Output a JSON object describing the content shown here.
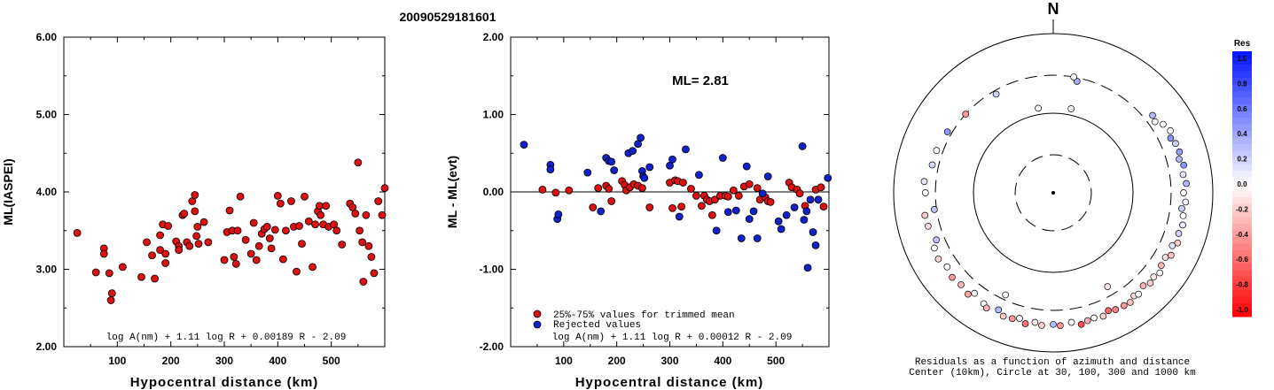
{
  "title": "20090529181601",
  "colors": {
    "red": "#dd1111",
    "blue": "#1122cc",
    "black": "#000000"
  },
  "chart_data": [
    {
      "type": "scatter",
      "xlabel": "Hypocentral distance (km)",
      "ylabel": "ML(IASPEI)",
      "xlim": [
        0,
        600
      ],
      "ylim": [
        2.0,
        6.0
      ],
      "xticks": [
        "100",
        "200",
        "300",
        "400",
        "500"
      ],
      "yticks": [
        "2.00",
        "3.00",
        "4.00",
        "5.00",
        "6.00"
      ],
      "formula": "log A(nm) + 1.11 log R + 0.00189 R - 2.09",
      "series": [
        {
          "color": "red",
          "points": [
            [
              25,
              3.47
            ],
            [
              60,
              2.96
            ],
            [
              75,
              3.27
            ],
            [
              75,
              3.2
            ],
            [
              85,
              2.95
            ],
            [
              88,
              2.6
            ],
            [
              90,
              2.69
            ],
            [
              110,
              3.03
            ],
            [
              145,
              2.9
            ],
            [
              155,
              3.35
            ],
            [
              165,
              3.18
            ],
            [
              170,
              2.88
            ],
            [
              180,
              3.44
            ],
            [
              180,
              3.25
            ],
            [
              185,
              3.58
            ],
            [
              190,
              3.2
            ],
            [
              190,
              3.08
            ],
            [
              195,
              3.56
            ],
            [
              210,
              3.36
            ],
            [
              215,
              3.3
            ],
            [
              215,
              3.25
            ],
            [
              222,
              3.7
            ],
            [
              225,
              3.72
            ],
            [
              230,
              3.35
            ],
            [
              235,
              3.3
            ],
            [
              240,
              3.88
            ],
            [
              245,
              3.96
            ],
            [
              245,
              3.75
            ],
            [
              248,
              3.43
            ],
            [
              250,
              3.55
            ],
            [
              252,
              3.33
            ],
            [
              262,
              3.61
            ],
            [
              270,
              3.35
            ],
            [
              300,
              3.12
            ],
            [
              305,
              3.48
            ],
            [
              310,
              3.76
            ],
            [
              315,
              3.5
            ],
            [
              318,
              3.16
            ],
            [
              322,
              3.07
            ],
            [
              325,
              3.5
            ],
            [
              330,
              3.94
            ],
            [
              340,
              3.38
            ],
            [
              350,
              3.2
            ],
            [
              355,
              3.6
            ],
            [
              360,
              3.12
            ],
            [
              365,
              3.3
            ],
            [
              370,
              3.46
            ],
            [
              375,
              3.52
            ],
            [
              380,
              3.55
            ],
            [
              385,
              3.4
            ],
            [
              388,
              3.27
            ],
            [
              395,
              3.51
            ],
            [
              400,
              3.95
            ],
            [
              405,
              3.85
            ],
            [
              410,
              3.13
            ],
            [
              415,
              3.5
            ],
            [
              425,
              3.88
            ],
            [
              430,
              3.55
            ],
            [
              435,
              2.97
            ],
            [
              440,
              3.56
            ],
            [
              445,
              3.33
            ],
            [
              450,
              3.94
            ],
            [
              458,
              3.62
            ],
            [
              465,
              3.03
            ],
            [
              470,
              3.58
            ],
            [
              475,
              3.75
            ],
            [
              478,
              3.82
            ],
            [
              480,
              3.7
            ],
            [
              485,
              3.58
            ],
            [
              490,
              3.82
            ],
            [
              495,
              3.55
            ],
            [
              505,
              3.58
            ],
            [
              510,
              3.5
            ],
            [
              520,
              3.32
            ],
            [
              535,
              3.85
            ],
            [
              540,
              3.8
            ],
            [
              545,
              3.72
            ],
            [
              550,
              4.38
            ],
            [
              553,
              3.5
            ],
            [
              558,
              3.35
            ],
            [
              560,
              2.84
            ],
            [
              565,
              3.7
            ],
            [
              570,
              3.3
            ],
            [
              575,
              3.16
            ],
            [
              580,
              2.95
            ],
            [
              588,
              3.88
            ],
            [
              595,
              3.7
            ],
            [
              600,
              4.05
            ]
          ]
        }
      ]
    },
    {
      "type": "scatter",
      "xlabel": "Hypocentral distance (km)",
      "ylabel": "ML - ML(evt)",
      "xlim": [
        0,
        600
      ],
      "ylim": [
        -2.0,
        2.0
      ],
      "xticks": [
        "100",
        "200",
        "300",
        "400",
        "500"
      ],
      "yticks": [
        "-2.00",
        "-1.00",
        "0.00",
        "1.00",
        "2.00"
      ],
      "ml_text": "ML= 2.81",
      "legend": [
        "25%-75% values for trimmed mean",
        "Rejected values"
      ],
      "formula": "log A(nm) + 1.11 log R + 0.00012 R - 2.09",
      "series": [
        {
          "name": "25%-75% values for trimmed mean",
          "color": "red",
          "points": [
            [
              60,
              0.03
            ],
            [
              85,
              -0.01
            ],
            [
              110,
              0.02
            ],
            [
              155,
              -0.2
            ],
            [
              165,
              0.05
            ],
            [
              180,
              0.08
            ],
            [
              185,
              0.04
            ],
            [
              190,
              -0.12
            ],
            [
              210,
              0.14
            ],
            [
              215,
              0.09
            ],
            [
              218,
              0.02
            ],
            [
              225,
              0.06
            ],
            [
              232,
              0.1
            ],
            [
              240,
              0.08
            ],
            [
              248,
              0.05
            ],
            [
              262,
              -0.2
            ],
            [
              300,
              0.12
            ],
            [
              305,
              -0.21
            ],
            [
              310,
              0.15
            ],
            [
              315,
              0.14
            ],
            [
              322,
              -0.19
            ],
            [
              325,
              0.12
            ],
            [
              340,
              0.04
            ],
            [
              350,
              -0.05
            ],
            [
              360,
              -0.18
            ],
            [
              365,
              -0.05
            ],
            [
              370,
              -0.1
            ],
            [
              375,
              -0.12
            ],
            [
              380,
              -0.3
            ],
            [
              385,
              -0.1
            ],
            [
              395,
              -0.05
            ],
            [
              405,
              -0.05
            ],
            [
              410,
              -0.06
            ],
            [
              420,
              0.02
            ],
            [
              430,
              -0.05
            ],
            [
              440,
              0.07
            ],
            [
              450,
              0.1
            ],
            [
              465,
              0.05
            ],
            [
              470,
              -0.1
            ],
            [
              480,
              -0.07
            ],
            [
              485,
              -0.12
            ],
            [
              490,
              -0.13
            ],
            [
              525,
              0.12
            ],
            [
              530,
              0.06
            ],
            [
              540,
              0.03
            ],
            [
              545,
              -0.02
            ],
            [
              555,
              -0.18
            ],
            [
              575,
              0.03
            ],
            [
              585,
              0.06
            ],
            [
              590,
              -0.19
            ]
          ]
        },
        {
          "name": "Rejected values",
          "color": "blue",
          "points": [
            [
              25,
              0.61
            ],
            [
              75,
              0.35
            ],
            [
              75,
              0.29
            ],
            [
              88,
              -0.35
            ],
            [
              90,
              -0.29
            ],
            [
              145,
              0.25
            ],
            [
              170,
              -0.25
            ],
            [
              180,
              0.44
            ],
            [
              185,
              0.4
            ],
            [
              190,
              0.39
            ],
            [
              195,
              0.28
            ],
            [
              222,
              0.5
            ],
            [
              230,
              0.53
            ],
            [
              240,
              0.62
            ],
            [
              245,
              0.7
            ],
            [
              248,
              0.27
            ],
            [
              250,
              0.2
            ],
            [
              252,
              0.18
            ],
            [
              262,
              0.32
            ],
            [
              300,
              0.34
            ],
            [
              305,
              0.42
            ],
            [
              318,
              -0.32
            ],
            [
              330,
              0.55
            ],
            [
              355,
              0.22
            ],
            [
              388,
              -0.5
            ],
            [
              400,
              0.44
            ],
            [
              410,
              -0.26
            ],
            [
              425,
              -0.24
            ],
            [
              435,
              -0.6
            ],
            [
              445,
              0.33
            ],
            [
              450,
              -0.35
            ],
            [
              458,
              -0.25
            ],
            [
              465,
              -0.6
            ],
            [
              475,
              -0.02
            ],
            [
              485,
              0.2
            ],
            [
              505,
              -0.38
            ],
            [
              510,
              -0.48
            ],
            [
              520,
              -0.3
            ],
            [
              535,
              -0.2
            ],
            [
              550,
              0.59
            ],
            [
              553,
              -0.36
            ],
            [
              558,
              -0.25
            ],
            [
              560,
              -0.98
            ],
            [
              565,
              -0.1
            ],
            [
              570,
              -0.52
            ],
            [
              575,
              -0.69
            ],
            [
              580,
              -0.1
            ],
            [
              598,
              0.18
            ]
          ]
        }
      ]
    },
    {
      "type": "scatter",
      "title": "N",
      "caption": [
        "Residuals as a function of azimuth and distance",
        "Center (10km), Circle at 30, 100, 300 and 1000 km"
      ],
      "colorbar_title": "Res",
      "colorbar_ticks": [
        "1.0",
        "0.8",
        "0.6",
        "0.4",
        "0.2",
        "0.0",
        "-0.2",
        "-0.4",
        "-0.6",
        "-0.8",
        "-1.0"
      ],
      "rings_km": [
        10,
        30,
        100,
        300,
        1000
      ],
      "points_az_dist_res": [
        [
          12,
          270,
          0.35
        ],
        [
          10,
          300,
          0.0
        ],
        [
          350,
          120,
          0.0
        ],
        [
          12,
          120,
          0.0
        ],
        [
          330,
          270,
          0.2
        ],
        [
          150,
          230,
          -0.1
        ],
        [
          205,
          260,
          0.0
        ],
        [
          312,
          300,
          -0.4
        ],
        [
          300,
          340,
          0.42
        ],
        [
          290,
          360,
          0.0
        ],
        [
          283,
          360,
          0.15
        ],
        [
          275,
          420,
          0.1
        ],
        [
          270,
          400,
          0.0
        ],
        [
          260,
          430,
          -0.2
        ],
        [
          262,
          320,
          0.25
        ],
        [
          255,
          420,
          -0.15
        ],
        [
          248,
          380,
          0.25
        ],
        [
          245,
          440,
          0.0
        ],
        [
          240,
          460,
          -0.15
        ],
        [
          235,
          420,
          0.0
        ],
        [
          230,
          450,
          -0.4
        ],
        [
          225,
          430,
          -0.3
        ],
        [
          220,
          460,
          -0.35
        ],
        [
          218,
          400,
          0.0
        ],
        [
          212,
          440,
          0.05
        ],
        [
          210,
          470,
          -0.3
        ],
        [
          205,
          420,
          0.3
        ],
        [
          202,
          470,
          -0.2
        ],
        [
          198,
          460,
          -0.4
        ],
        [
          195,
          430,
          0.05
        ],
        [
          192,
          480,
          -0.55
        ],
        [
          188,
          440,
          -0.1
        ],
        [
          185,
          470,
          -0.2
        ],
        [
          180,
          450,
          0.3
        ],
        [
          177,
          470,
          -0.4
        ],
        [
          172,
          440,
          0.0
        ],
        [
          168,
          490,
          -0.7
        ],
        [
          165,
          460,
          -0.3
        ],
        [
          162,
          450,
          0.0
        ],
        [
          158,
          470,
          -0.2
        ],
        [
          155,
          430,
          -0.6
        ],
        [
          152,
          460,
          -0.5
        ],
        [
          148,
          470,
          -0.4
        ],
        [
          145,
          480,
          -0.25
        ],
        [
          142,
          440,
          -0.15
        ],
        [
          140,
          460,
          0.0
        ],
        [
          136,
          420,
          -0.3
        ],
        [
          133,
          460,
          -0.2
        ],
        [
          130,
          440,
          -0.1
        ],
        [
          127,
          470,
          0.0
        ],
        [
          124,
          430,
          -0.3
        ],
        [
          120,
          420,
          -0.1
        ],
        [
          118,
          470,
          -0.25
        ],
        [
          114,
          430,
          0.1
        ],
        [
          112,
          480,
          -0.2
        ],
        [
          108,
          450,
          0.2
        ],
        [
          104,
          470,
          0.1
        ],
        [
          100,
          450,
          0.0
        ],
        [
          97,
          420,
          0.2
        ],
        [
          94,
          460,
          0.05
        ],
        [
          90,
          430,
          0.0
        ],
        [
          86,
          470,
          0.3
        ],
        [
          82,
          440,
          0.1
        ],
        [
          78,
          470,
          0.45
        ],
        [
          75,
          430,
          0.3
        ],
        [
          72,
          460,
          0.4
        ],
        [
          68,
          450,
          0.2
        ],
        [
          65,
          420,
          0.45
        ],
        [
          62,
          460,
          0.0
        ],
        [
          58,
          420,
          0.0
        ],
        [
          55,
          360,
          0.0
        ],
        [
          52,
          380,
          0.3
        ]
      ]
    }
  ]
}
